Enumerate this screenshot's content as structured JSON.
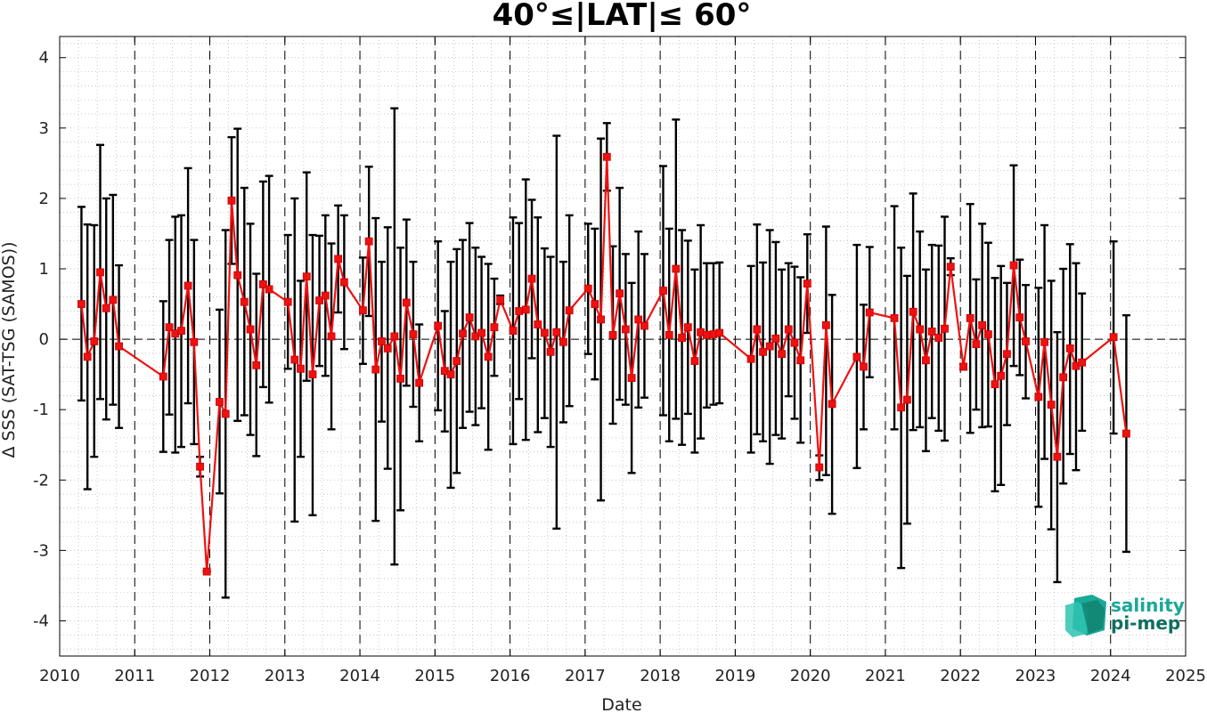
{
  "chart_data": {
    "type": "line",
    "title": "40°≤|LAT|≤ 60°",
    "xlabel": "Date",
    "ylabel": "Δ SSS (SAT-TSG (SAMOS))",
    "xlim": [
      2010,
      2025
    ],
    "ylim": [
      -4.5,
      4.3
    ],
    "x_ticks": [
      "2010",
      "2011",
      "2012",
      "2013",
      "2014",
      "2015",
      "2016",
      "2017",
      "2018",
      "2019",
      "2020",
      "2021",
      "2022",
      "2023",
      "2024",
      "2025"
    ],
    "y_ticks": [
      "4",
      "3",
      "2",
      "1",
      "0",
      "-1",
      "-2",
      "-3",
      "-4"
    ],
    "grid": "minor dotted",
    "reference_line": 0,
    "year_separators": [
      2011,
      2012,
      2013,
      2014,
      2015,
      2016,
      2017,
      2018,
      2019,
      2020,
      2021,
      2022,
      2023,
      2024
    ],
    "colors": {
      "series": "#ee1111",
      "errorbar": "#000000",
      "logo": "#1aa897"
    },
    "series": [
      {
        "points": [
          {
            "x": 2010.29,
            "y": 0.5,
            "lo": -0.87,
            "hi": 1.88
          },
          {
            "x": 2010.37,
            "y": -0.25,
            "lo": -2.13,
            "hi": 1.63
          },
          {
            "x": 2010.46,
            "y": -0.03,
            "lo": -1.67,
            "hi": 1.62
          },
          {
            "x": 2010.54,
            "y": 0.95,
            "lo": -0.85,
            "hi": 2.76
          },
          {
            "x": 2010.62,
            "y": 0.44,
            "lo": -1.14,
            "hi": 2.0
          },
          {
            "x": 2010.71,
            "y": 0.56,
            "lo": -0.93,
            "hi": 2.05
          },
          {
            "x": 2010.79,
            "y": -0.1,
            "lo": -1.26,
            "hi": 1.05
          },
          {
            "x": 2011.38,
            "y": -0.53,
            "lo": -1.6,
            "hi": 0.54
          },
          {
            "x": 2011.46,
            "y": 0.17,
            "lo": -1.07,
            "hi": 1.41
          },
          {
            "x": 2011.54,
            "y": 0.08,
            "lo": -1.61,
            "hi": 1.74
          },
          {
            "x": 2011.62,
            "y": 0.12,
            "lo": -1.53,
            "hi": 1.76
          },
          {
            "x": 2011.71,
            "y": 0.76,
            "lo": -0.91,
            "hi": 2.43
          },
          {
            "x": 2011.79,
            "y": -0.04,
            "lo": -1.49,
            "hi": 1.41
          },
          {
            "x": 2011.87,
            "y": -1.81,
            "lo": -1.95,
            "hi": -1.67
          },
          {
            "x": 2011.96,
            "y": -3.3,
            "lo": -3.3,
            "hi": -3.3
          },
          {
            "x": 2012.13,
            "y": -0.89,
            "lo": -2.19,
            "hi": 0.42
          },
          {
            "x": 2012.21,
            "y": -1.06,
            "lo": -3.67,
            "hi": 1.55
          },
          {
            "x": 2012.29,
            "y": 1.97,
            "lo": 1.07,
            "hi": 2.87
          },
          {
            "x": 2012.37,
            "y": 0.91,
            "lo": -1.16,
            "hi": 2.99
          },
          {
            "x": 2012.46,
            "y": 0.53,
            "lo": -1.08,
            "hi": 2.15
          },
          {
            "x": 2012.54,
            "y": 0.14,
            "lo": -1.36,
            "hi": 1.64
          },
          {
            "x": 2012.62,
            "y": -0.37,
            "lo": -1.66,
            "hi": 0.93
          },
          {
            "x": 2012.71,
            "y": 0.78,
            "lo": -0.68,
            "hi": 2.24
          },
          {
            "x": 2012.79,
            "y": 0.71,
            "lo": -0.9,
            "hi": 2.32
          },
          {
            "x": 2013.04,
            "y": 0.53,
            "lo": -0.42,
            "hi": 1.48
          },
          {
            "x": 2013.13,
            "y": -0.29,
            "lo": -2.59,
            "hi": 2.0
          },
          {
            "x": 2013.21,
            "y": -0.42,
            "lo": -1.67,
            "hi": 0.83
          },
          {
            "x": 2013.29,
            "y": 0.89,
            "lo": -0.59,
            "hi": 2.37
          },
          {
            "x": 2013.37,
            "y": -0.5,
            "lo": -2.5,
            "hi": 1.48
          },
          {
            "x": 2013.46,
            "y": 0.55,
            "lo": -0.38,
            "hi": 1.47
          },
          {
            "x": 2013.54,
            "y": 0.62,
            "lo": -0.52,
            "hi": 1.76
          },
          {
            "x": 2013.62,
            "y": 0.04,
            "lo": -1.28,
            "hi": 1.36
          },
          {
            "x": 2013.71,
            "y": 1.14,
            "lo": 0.38,
            "hi": 1.9
          },
          {
            "x": 2013.79,
            "y": 0.81,
            "lo": -0.14,
            "hi": 1.76
          },
          {
            "x": 2014.04,
            "y": 0.41,
            "lo": -0.35,
            "hi": 1.16
          },
          {
            "x": 2014.12,
            "y": 1.39,
            "lo": 0.33,
            "hi": 2.45
          },
          {
            "x": 2014.21,
            "y": -0.43,
            "lo": -2.58,
            "hi": 1.72
          },
          {
            "x": 2014.29,
            "y": -0.03,
            "lo": -1.17,
            "hi": 1.1
          },
          {
            "x": 2014.37,
            "y": -0.13,
            "lo": -1.84,
            "hi": 1.59
          },
          {
            "x": 2014.46,
            "y": 0.04,
            "lo": -3.2,
            "hi": 3.28
          },
          {
            "x": 2014.54,
            "y": -0.56,
            "lo": -2.43,
            "hi": 1.3
          },
          {
            "x": 2014.62,
            "y": 0.52,
            "lo": -0.66,
            "hi": 1.7
          },
          {
            "x": 2014.71,
            "y": 0.07,
            "lo": -0.96,
            "hi": 1.1
          },
          {
            "x": 2014.79,
            "y": -0.62,
            "lo": -1.45,
            "hi": 0.21
          },
          {
            "x": 2015.04,
            "y": 0.19,
            "lo": -1.01,
            "hi": 1.39
          },
          {
            "x": 2015.13,
            "y": -0.45,
            "lo": -1.31,
            "hi": 0.4
          },
          {
            "x": 2015.21,
            "y": -0.5,
            "lo": -2.11,
            "hi": 1.1
          },
          {
            "x": 2015.29,
            "y": -0.31,
            "lo": -1.9,
            "hi": 1.28
          },
          {
            "x": 2015.37,
            "y": 0.08,
            "lo": -1.26,
            "hi": 1.41
          },
          {
            "x": 2015.46,
            "y": 0.31,
            "lo": -1.03,
            "hi": 1.65
          },
          {
            "x": 2015.54,
            "y": 0.04,
            "lo": -1.22,
            "hi": 1.3
          },
          {
            "x": 2015.62,
            "y": 0.09,
            "lo": -0.98,
            "hi": 1.17
          },
          {
            "x": 2015.71,
            "y": -0.25,
            "lo": -1.57,
            "hi": 1.07
          },
          {
            "x": 2015.79,
            "y": 0.17,
            "lo": -0.52,
            "hi": 0.86
          },
          {
            "x": 2015.87,
            "y": 0.56,
            "lo": 0.5,
            "hi": 0.62
          },
          {
            "x": 2016.04,
            "y": 0.12,
            "lo": -1.49,
            "hi": 1.73
          },
          {
            "x": 2016.12,
            "y": 0.4,
            "lo": -0.85,
            "hi": 1.65
          },
          {
            "x": 2016.21,
            "y": 0.42,
            "lo": -1.43,
            "hi": 2.27
          },
          {
            "x": 2016.29,
            "y": 0.86,
            "lo": -0.27,
            "hi": 1.98
          },
          {
            "x": 2016.37,
            "y": 0.21,
            "lo": -1.32,
            "hi": 1.73
          },
          {
            "x": 2016.46,
            "y": 0.09,
            "lo": -1.12,
            "hi": 1.29
          },
          {
            "x": 2016.54,
            "y": -0.18,
            "lo": -1.53,
            "hi": 1.17
          },
          {
            "x": 2016.62,
            "y": 0.1,
            "lo": -2.69,
            "hi": 2.89
          },
          {
            "x": 2016.71,
            "y": -0.04,
            "lo": -1.18,
            "hi": 1.1
          },
          {
            "x": 2016.79,
            "y": 0.41,
            "lo": -0.95,
            "hi": 1.76
          },
          {
            "x": 2017.04,
            "y": 0.72,
            "lo": -0.21,
            "hi": 1.64
          },
          {
            "x": 2017.13,
            "y": 0.5,
            "lo": -0.57,
            "hi": 1.57
          },
          {
            "x": 2017.21,
            "y": 0.28,
            "lo": -2.29,
            "hi": 2.85
          },
          {
            "x": 2017.29,
            "y": 2.59,
            "lo": 2.11,
            "hi": 3.07
          },
          {
            "x": 2017.37,
            "y": 0.06,
            "lo": -1.2,
            "hi": 1.32
          },
          {
            "x": 2017.46,
            "y": 0.65,
            "lo": -0.86,
            "hi": 2.15
          },
          {
            "x": 2017.54,
            "y": 0.14,
            "lo": -0.93,
            "hi": 1.21
          },
          {
            "x": 2017.62,
            "y": -0.55,
            "lo": -1.9,
            "hi": 0.8
          },
          {
            "x": 2017.71,
            "y": 0.28,
            "lo": -0.97,
            "hi": 1.53
          },
          {
            "x": 2017.79,
            "y": 0.19,
            "lo": -0.83,
            "hi": 1.21
          },
          {
            "x": 2018.04,
            "y": 0.69,
            "lo": -1.08,
            "hi": 2.46
          },
          {
            "x": 2018.12,
            "y": 0.06,
            "lo": -1.45,
            "hi": 1.57
          },
          {
            "x": 2018.21,
            "y": 1.0,
            "lo": -1.13,
            "hi": 3.12
          },
          {
            "x": 2018.29,
            "y": 0.02,
            "lo": -1.5,
            "hi": 1.55
          },
          {
            "x": 2018.37,
            "y": 0.17,
            "lo": -1.06,
            "hi": 1.4
          },
          {
            "x": 2018.46,
            "y": -0.31,
            "lo": -1.61,
            "hi": 0.99
          },
          {
            "x": 2018.54,
            "y": 0.1,
            "lo": -1.41,
            "hi": 1.62
          },
          {
            "x": 2018.62,
            "y": 0.06,
            "lo": -0.97,
            "hi": 1.08
          },
          {
            "x": 2018.71,
            "y": 0.07,
            "lo": -0.93,
            "hi": 1.08
          },
          {
            "x": 2018.79,
            "y": 0.09,
            "lo": -0.91,
            "hi": 1.09
          },
          {
            "x": 2019.21,
            "y": -0.28,
            "lo": -1.61,
            "hi": 1.04
          },
          {
            "x": 2019.29,
            "y": 0.14,
            "lo": -1.35,
            "hi": 1.63
          },
          {
            "x": 2019.37,
            "y": -0.18,
            "lo": -1.45,
            "hi": 1.09
          },
          {
            "x": 2019.46,
            "y": -0.1,
            "lo": -1.77,
            "hi": 1.55
          },
          {
            "x": 2019.54,
            "y": 0.01,
            "lo": -1.36,
            "hi": 1.38
          },
          {
            "x": 2019.62,
            "y": -0.21,
            "lo": -1.41,
            "hi": 0.99
          },
          {
            "x": 2019.71,
            "y": 0.14,
            "lo": -0.81,
            "hi": 1.08
          },
          {
            "x": 2019.79,
            "y": -0.05,
            "lo": -1.13,
            "hi": 1.03
          },
          {
            "x": 2019.87,
            "y": -0.3,
            "lo": -1.47,
            "hi": 0.88
          },
          {
            "x": 2019.96,
            "y": 0.79,
            "lo": 0.09,
            "hi": 1.49
          },
          {
            "x": 2020.12,
            "y": -1.82,
            "lo": -2.0,
            "hi": -1.65
          },
          {
            "x": 2020.21,
            "y": 0.2,
            "lo": -1.93,
            "hi": 1.6
          },
          {
            "x": 2020.29,
            "y": -0.92,
            "lo": -2.48,
            "hi": 0.63
          },
          {
            "x": 2020.62,
            "y": -0.25,
            "lo": -1.83,
            "hi": 1.34
          },
          {
            "x": 2020.71,
            "y": -0.39,
            "lo": -1.28,
            "hi": 0.49
          },
          {
            "x": 2020.79,
            "y": 0.38,
            "lo": -0.54,
            "hi": 1.31
          },
          {
            "x": 2021.12,
            "y": 0.3,
            "lo": -1.28,
            "hi": 1.89
          },
          {
            "x": 2021.21,
            "y": -0.97,
            "lo": -3.25,
            "hi": 1.3
          },
          {
            "x": 2021.29,
            "y": -0.86,
            "lo": -2.62,
            "hi": 0.9
          },
          {
            "x": 2021.37,
            "y": 0.39,
            "lo": -1.29,
            "hi": 2.07
          },
          {
            "x": 2021.46,
            "y": 0.14,
            "lo": -1.25,
            "hi": 1.53
          },
          {
            "x": 2021.54,
            "y": -0.3,
            "lo": -1.59,
            "hi": 0.99
          },
          {
            "x": 2021.62,
            "y": 0.11,
            "lo": -1.12,
            "hi": 1.34
          },
          {
            "x": 2021.71,
            "y": 0.02,
            "lo": -1.3,
            "hi": 1.33
          },
          {
            "x": 2021.79,
            "y": 0.15,
            "lo": -1.44,
            "hi": 1.74
          },
          {
            "x": 2021.87,
            "y": 1.03,
            "lo": 0.91,
            "hi": 1.15
          },
          {
            "x": 2022.04,
            "y": -0.39,
            "lo": -0.43,
            "hi": -0.35
          },
          {
            "x": 2022.13,
            "y": 0.3,
            "lo": -1.33,
            "hi": 1.92
          },
          {
            "x": 2022.21,
            "y": -0.07,
            "lo": -1.0,
            "hi": 0.85
          },
          {
            "x": 2022.29,
            "y": 0.2,
            "lo": -1.25,
            "hi": 1.64
          },
          {
            "x": 2022.37,
            "y": 0.07,
            "lo": -1.24,
            "hi": 1.37
          },
          {
            "x": 2022.46,
            "y": -0.64,
            "lo": -2.16,
            "hi": 0.87
          },
          {
            "x": 2022.54,
            "y": -0.52,
            "lo": -2.07,
            "hi": 1.04
          },
          {
            "x": 2022.62,
            "y": -0.21,
            "lo": -1.22,
            "hi": 0.8
          },
          {
            "x": 2022.71,
            "y": 1.05,
            "lo": -0.38,
            "hi": 2.47
          },
          {
            "x": 2022.79,
            "y": 0.31,
            "lo": -0.51,
            "hi": 1.13
          },
          {
            "x": 2022.87,
            "y": -0.03,
            "lo": -0.84,
            "hi": 0.77
          },
          {
            "x": 2023.04,
            "y": -0.82,
            "lo": -2.38,
            "hi": 0.73
          },
          {
            "x": 2023.12,
            "y": -0.04,
            "lo": -1.7,
            "hi": 1.62
          },
          {
            "x": 2023.21,
            "y": -0.93,
            "lo": -2.7,
            "hi": 0.83
          },
          {
            "x": 2023.29,
            "y": -1.67,
            "lo": -3.45,
            "hi": 0.1
          },
          {
            "x": 2023.37,
            "y": -0.54,
            "lo": -2.05,
            "hi": 1.0
          },
          {
            "x": 2023.46,
            "y": -0.13,
            "lo": -1.63,
            "hi": 1.35
          },
          {
            "x": 2023.54,
            "y": -0.38,
            "lo": -1.86,
            "hi": 1.08
          },
          {
            "x": 2023.62,
            "y": -0.33,
            "lo": -1.3,
            "hi": 0.65
          },
          {
            "x": 2024.04,
            "y": 0.03,
            "lo": -1.34,
            "hi": 1.39
          },
          {
            "x": 2024.21,
            "y": -1.34,
            "lo": -3.02,
            "hi": 0.34
          }
        ]
      }
    ]
  },
  "logo": {
    "line1": "salinity",
    "line2": "pi-mep"
  }
}
